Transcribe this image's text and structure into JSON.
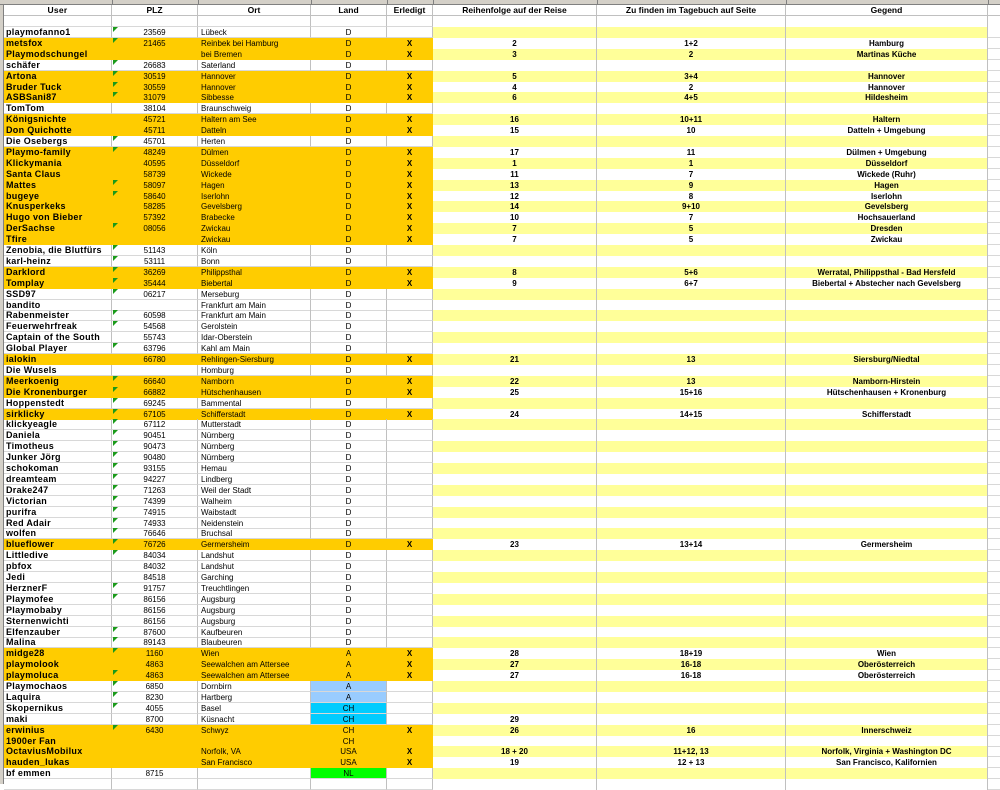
{
  "colors": {
    "done": "#ffcc00",
    "stripe": "#ffff99",
    "land_a_blue": "#99ccff",
    "land_ch_cyan": "#00ccff",
    "land_nl_green": "#00ff00",
    "comment_marker": "#1a9a1a"
  },
  "headers": {
    "user": "User",
    "plz": "PLZ",
    "ort": "Ort",
    "land": "Land",
    "erledigt": "Erledigt",
    "reihenfolge": "Reihenfolge auf der Reise",
    "tagebuch": "Zu finden im Tagebuch auf Seite",
    "gegend": "Gegend"
  },
  "rows": [
    {
      "user": "playmofanno1",
      "plz": "23569",
      "ort": "Lübeck",
      "land": "D",
      "erledigt": "",
      "comment": true
    },
    {
      "user": "metsfox",
      "plz": "21465",
      "ort": "Reinbek bei Hamburg",
      "land": "D",
      "erledigt": "X",
      "reihenfolge": "2",
      "tagebuch": "1+2",
      "gegend": "Hamburg",
      "comment": true
    },
    {
      "user": "Playmodschungel",
      "plz": "",
      "ort": "bei Bremen",
      "land": "D",
      "erledigt": "X",
      "reihenfolge": "3",
      "tagebuch": "2",
      "gegend": "Martinas Küche"
    },
    {
      "user": "schäfer",
      "plz": "26683",
      "ort": "Saterland",
      "land": "D",
      "erledigt": "",
      "comment": true
    },
    {
      "user": "Artona",
      "plz": "30519",
      "ort": "Hannover",
      "land": "D",
      "erledigt": "X",
      "reihenfolge": "5",
      "tagebuch": "3+4",
      "gegend": "Hannover",
      "comment": true
    },
    {
      "user": "Bruder Tuck",
      "plz": "30559",
      "ort": "Hannover",
      "land": "D",
      "erledigt": "X",
      "reihenfolge": "4",
      "tagebuch": "2",
      "gegend": "Hannover",
      "comment": true
    },
    {
      "user": "ASBSani87",
      "plz": "31079",
      "ort": "Sibbesse",
      "land": "D",
      "erledigt": "X",
      "reihenfolge": "6",
      "tagebuch": "4+5",
      "gegend": "Hildesheim",
      "comment": true
    },
    {
      "user": "TomTom",
      "plz": "38104",
      "ort": "Braunschweig",
      "land": "D",
      "erledigt": ""
    },
    {
      "user": "Königsnichte",
      "plz": "45721",
      "ort": "Haltern am See",
      "land": "D",
      "erledigt": "X",
      "reihenfolge": "16",
      "tagebuch": "10+11",
      "gegend": "Haltern"
    },
    {
      "user": "Don Quichotte",
      "plz": "45711",
      "ort": "Datteln",
      "land": "D",
      "erledigt": "X",
      "reihenfolge": "15",
      "tagebuch": "10",
      "gegend": "Datteln + Umgebung"
    },
    {
      "user": "Die Osebergs",
      "plz": "45701",
      "ort": "Herten",
      "land": "D",
      "erledigt": "",
      "comment": true
    },
    {
      "user": "Playmo-family",
      "plz": "48249",
      "ort": "Dülmen",
      "land": "D",
      "erledigt": "X",
      "reihenfolge": "17",
      "tagebuch": "11",
      "gegend": "Dülmen + Umgebung",
      "comment": true
    },
    {
      "user": "Klickymania",
      "plz": "40595",
      "ort": "Düsseldorf",
      "land": "D",
      "erledigt": "X",
      "reihenfolge": "1",
      "tagebuch": "1",
      "gegend": "Düsseldorf"
    },
    {
      "user": "Santa Claus",
      "plz": "58739",
      "ort": "Wickede",
      "land": "D",
      "erledigt": "X",
      "reihenfolge": "11",
      "tagebuch": "7",
      "gegend": "Wickede (Ruhr)"
    },
    {
      "user": "Mattes",
      "plz": "58097",
      "ort": "Hagen",
      "land": "D",
      "erledigt": "X",
      "reihenfolge": "13",
      "tagebuch": "9",
      "gegend": "Hagen",
      "comment": true
    },
    {
      "user": "bugeye",
      "plz": "58640",
      "ort": "Iserlohn",
      "land": "D",
      "erledigt": "X",
      "reihenfolge": "12",
      "tagebuch": "8",
      "gegend": "Iserlohn",
      "comment": true
    },
    {
      "user": "Knusperkeks",
      "plz": "58285",
      "ort": "Gevelsberg",
      "land": "D",
      "erledigt": "X",
      "reihenfolge": "14",
      "tagebuch": "9+10",
      "gegend": "Gevelsberg"
    },
    {
      "user": "Hugo von Bieber",
      "plz": "57392",
      "ort": "Brabecke",
      "land": "D",
      "erledigt": "X",
      "reihenfolge": "10",
      "tagebuch": "7",
      "gegend": "Hochsauerland"
    },
    {
      "user": "DerSachse",
      "plz": "08056",
      "ort": "Zwickau",
      "land": "D",
      "erledigt": "X",
      "reihenfolge": "7",
      "tagebuch": "5",
      "gegend": "Dresden",
      "comment": true
    },
    {
      "user": "Tfire",
      "plz": "",
      "ort": "Zwickau",
      "land": "D",
      "erledigt": "X",
      "reihenfolge": "7",
      "tagebuch": "5",
      "gegend": "Zwickau"
    },
    {
      "user": "Zenobia, die Blutfürs",
      "plz": "51143",
      "ort": "Köln",
      "land": "D",
      "erledigt": "",
      "comment": true
    },
    {
      "user": "karl-heinz",
      "plz": "53111",
      "ort": "Bonn",
      "land": "D",
      "erledigt": "",
      "comment": true
    },
    {
      "user": "Darklord",
      "plz": "36269",
      "ort": "Philippsthal",
      "land": "D",
      "erledigt": "X",
      "reihenfolge": "8",
      "tagebuch": "5+6",
      "gegend": "Werratal, Philippsthal - Bad Hersfeld",
      "comment": true
    },
    {
      "user": "Tomplay",
      "plz": "35444",
      "ort": "Biebertal",
      "land": "D",
      "erledigt": "X",
      "reihenfolge": "9",
      "tagebuch": "6+7",
      "gegend": "Biebertal + Abstecher nach Gevelsberg",
      "comment": true
    },
    {
      "user": "SSD97",
      "plz": "06217",
      "ort": "Merseburg",
      "land": "D",
      "erledigt": "",
      "comment": true
    },
    {
      "user": "bandito",
      "plz": "",
      "ort": "Frankfurt am Main",
      "land": "D",
      "erledigt": ""
    },
    {
      "user": "Rabenmeister",
      "plz": "60598",
      "ort": "Frankfurt am Main",
      "land": "D",
      "erledigt": "",
      "comment": true
    },
    {
      "user": "Feuerwehrfreak",
      "plz": "54568",
      "ort": "Gerolstein",
      "land": "D",
      "erledigt": "",
      "comment": true
    },
    {
      "user": "Captain of the South",
      "plz": "55743",
      "ort": "Idar-Oberstein",
      "land": "D",
      "erledigt": ""
    },
    {
      "user": "Global Player",
      "plz": "63796",
      "ort": "Kahl am Main",
      "land": "D",
      "erledigt": "",
      "comment": true
    },
    {
      "user": "ialokin",
      "plz": "66780",
      "ort": "Rehlingen-Siersburg",
      "land": "D",
      "erledigt": "X",
      "reihenfolge": "21",
      "tagebuch": "13",
      "gegend": "Siersburg/Niedtal"
    },
    {
      "user": "Die Wusels",
      "plz": "",
      "ort": "Homburg",
      "land": "D",
      "erledigt": ""
    },
    {
      "user": "Meerkoenig",
      "plz": "66640",
      "ort": "Namborn",
      "land": "D",
      "erledigt": "X",
      "reihenfolge": "22",
      "tagebuch": "13",
      "gegend": "Namborn-Hirstein",
      "comment": true
    },
    {
      "user": "Die Kronenburger",
      "plz": "66882",
      "ort": "Hütschenhausen",
      "land": "D",
      "erledigt": "X",
      "reihenfolge": "25",
      "tagebuch": "15+16",
      "gegend": "Hütschenhausen + Kronenburg",
      "comment": true
    },
    {
      "user": "Hoppenstedt",
      "plz": "69245",
      "ort": "Bammental",
      "land": "D",
      "erledigt": "",
      "comment": true
    },
    {
      "user": "sirklicky",
      "plz": "67105",
      "ort": "Schifferstadt",
      "land": "D",
      "erledigt": "X",
      "reihenfolge": "24",
      "tagebuch": "14+15",
      "gegend": "Schifferstadt",
      "comment": true
    },
    {
      "user": "klickyeagle",
      "plz": "67112",
      "ort": "Mutterstadt",
      "land": "D",
      "erledigt": "",
      "comment": true
    },
    {
      "user": "Daniela",
      "plz": "90451",
      "ort": "Nürnberg",
      "land": "D",
      "erledigt": "",
      "comment": true
    },
    {
      "user": "Timotheus",
      "plz": "90473",
      "ort": "Nürnberg",
      "land": "D",
      "erledigt": "",
      "comment": true
    },
    {
      "user": "Junker Jörg",
      "plz": "90480",
      "ort": "Nürnberg",
      "land": "D",
      "erledigt": "",
      "comment": true
    },
    {
      "user": "schokoman",
      "plz": "93155",
      "ort": "Hemau",
      "land": "D",
      "erledigt": "",
      "comment": true
    },
    {
      "user": "dreamteam",
      "plz": "94227",
      "ort": "Lindberg",
      "land": "D",
      "erledigt": "",
      "comment": true
    },
    {
      "user": "Drake247",
      "plz": "71263",
      "ort": "Weil der Stadt",
      "land": "D",
      "erledigt": "",
      "comment": true
    },
    {
      "user": "Victorian",
      "plz": "74399",
      "ort": "Walheim",
      "land": "D",
      "erledigt": "",
      "comment": true
    },
    {
      "user": "purifra",
      "plz": "74915",
      "ort": "Waibstadt",
      "land": "D",
      "erledigt": "",
      "comment": true
    },
    {
      "user": "Red Adair",
      "plz": "74933",
      "ort": "Neidenstein",
      "land": "D",
      "erledigt": "",
      "comment": true
    },
    {
      "user": "wolfen",
      "plz": "76646",
      "ort": "Bruchsal",
      "land": "D",
      "erledigt": "",
      "comment": true
    },
    {
      "user": "blueflower",
      "plz": "76726",
      "ort": "Germersheim",
      "land": "D",
      "erledigt": "X",
      "reihenfolge": "23",
      "tagebuch": "13+14",
      "gegend": "Germersheim",
      "comment": true
    },
    {
      "user": "Littledive",
      "plz": "84034",
      "ort": "Landshut",
      "land": "D",
      "erledigt": "",
      "comment": true
    },
    {
      "user": "pbfox",
      "plz": "84032",
      "ort": "Landshut",
      "land": "D",
      "erledigt": ""
    },
    {
      "user": "Jedi",
      "plz": "84518",
      "ort": "Garching",
      "land": "D",
      "erledigt": ""
    },
    {
      "user": "HerznerF",
      "plz": "91757",
      "ort": "Treuchtlingen",
      "land": "D",
      "erledigt": "",
      "comment": true
    },
    {
      "user": "Playmofee",
      "plz": "86156",
      "ort": "Augsburg",
      "land": "D",
      "erledigt": "",
      "comment": true
    },
    {
      "user": "Playmobaby",
      "plz": "86156",
      "ort": "Augsburg",
      "land": "D",
      "erledigt": ""
    },
    {
      "user": "Sternenwichti",
      "plz": "86156",
      "ort": "Augsburg",
      "land": "D",
      "erledigt": ""
    },
    {
      "user": "Elfenzauber",
      "plz": "87600",
      "ort": "Kaufbeuren",
      "land": "D",
      "erledigt": "",
      "comment": true
    },
    {
      "user": "Malina",
      "plz": "89143",
      "ort": "Blaubeuren",
      "land": "D",
      "erledigt": "",
      "comment": true
    },
    {
      "user": "midge28",
      "plz": "1160",
      "ort": "Wien",
      "land": "A",
      "erledigt": "X",
      "reihenfolge": "28",
      "tagebuch": "18+19",
      "gegend": "Wien",
      "comment": true
    },
    {
      "user": "playmolook",
      "plz": "4863",
      "ort": "Seewalchen am Attersee",
      "land": "A",
      "erledigt": "X",
      "reihenfolge": "27",
      "tagebuch": "16-18",
      "gegend": "Oberösterreich"
    },
    {
      "user": "playmoluca",
      "plz": "4863",
      "ort": "Seewalchen am Attersee",
      "land": "A",
      "erledigt": "X",
      "reihenfolge": "27",
      "tagebuch": "16-18",
      "gegend": "Oberösterreich",
      "comment": true
    },
    {
      "user": "Playmochaos",
      "plz": "6850",
      "ort": "Dornbirn",
      "land": "A",
      "erledigt": "",
      "land_color": "#99ccff",
      "comment": true
    },
    {
      "user": "Laquira",
      "plz": "8230",
      "ort": "Hartberg",
      "land": "A",
      "erledigt": "",
      "land_color": "#99ccff",
      "comment": true
    },
    {
      "user": "Skopernikus",
      "plz": "4055",
      "ort": "Basel",
      "land": "CH",
      "erledigt": "",
      "land_color": "#00ccff",
      "comment": true
    },
    {
      "user": "maki",
      "plz": "8700",
      "ort": "Küsnacht",
      "land": "CH",
      "erledigt": "",
      "land_color": "#00ccff",
      "reihenfolge": "29"
    },
    {
      "user": "erwinius",
      "plz": "6430",
      "ort": "Schwyz",
      "land": "CH",
      "erledigt": "X",
      "reihenfolge": "26",
      "tagebuch": "16",
      "gegend": "Innerschweiz",
      "comment": true
    },
    {
      "user": "1900er Fan",
      "plz": "",
      "ort": "",
      "land": "CH",
      "erledigt": "",
      "highlight": true
    },
    {
      "user": "OctaviusMobilux",
      "plz": "",
      "ort": "Norfolk, VA",
      "land": "USA",
      "erledigt": "X",
      "reihenfolge": "18  + 20",
      "tagebuch": "11+12, 13",
      "gegend": "Norfolk, Virginia + Washington DC"
    },
    {
      "user": "hauden_lukas",
      "plz": "",
      "ort": "San Francisco",
      "land": "USA",
      "erledigt": "X",
      "reihenfolge": "19",
      "tagebuch": "12 + 13",
      "gegend": "San Francisco, Kalifornien"
    },
    {
      "user": "bf emmen",
      "plz": "8715",
      "ort": "",
      "land": "NL",
      "erledigt": "",
      "land_color": "#00ff00"
    }
  ]
}
